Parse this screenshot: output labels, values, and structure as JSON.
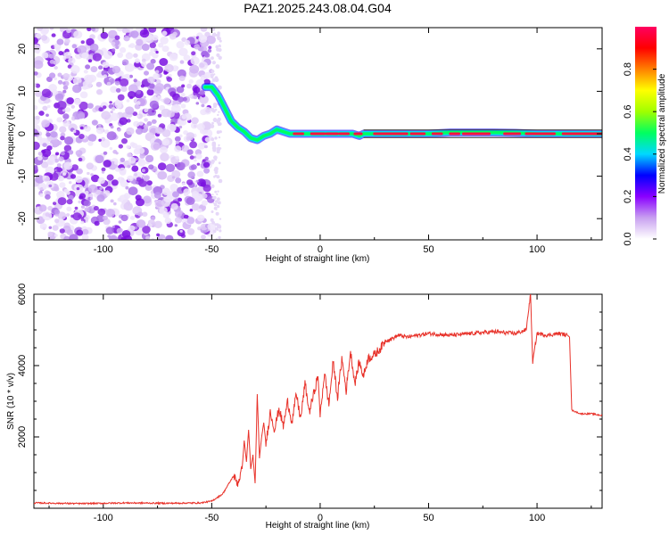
{
  "title": "PAZ1.2025.243.08.04.G04",
  "colors": {
    "snr_line": "#e8322a",
    "spectrogram_noise": "#8a2be2",
    "axis": "#000000"
  },
  "chart_data": [
    {
      "type": "heatmap",
      "title": "PAZ1.2025.243.08.04.G04",
      "xlabel": "Height of straight line (km)",
      "ylabel": "Frequency (Hz)",
      "xlim": [
        -132,
        130
      ],
      "ylim": [
        -25,
        25
      ],
      "xticks": [
        -100,
        -50,
        0,
        50,
        100
      ],
      "yticks": [
        -20,
        -10,
        0,
        10,
        20
      ],
      "colorbar": {
        "label": "Normalized spectral amplitude",
        "range": [
          0.0,
          1.0
        ],
        "ticks": [
          0.0,
          0.2,
          0.4,
          0.6,
          0.8
        ],
        "colormap": [
          "#ffffff",
          "#c8a0f0",
          "#8a00ff",
          "#0000ff",
          "#00d8ff",
          "#00ff60",
          "#a0ff00",
          "#ffff00",
          "#ff8000",
          "#ff0000",
          "#ff0060"
        ]
      },
      "noise_region_x": [
        -132,
        -50
      ],
      "signal_track": {
        "x": [
          -53,
          -50,
          -47,
          -44,
          -41,
          -38,
          -35,
          -32,
          -29,
          -26,
          -23,
          -20,
          -17,
          -14,
          -10,
          -5,
          0,
          5,
          10,
          15,
          18,
          20,
          25,
          35,
          50,
          60,
          70,
          80,
          90,
          100,
          110,
          120,
          130
        ],
        "y": [
          11,
          11,
          9,
          6,
          3,
          1.5,
          0.5,
          -1,
          -1.5,
          -0.5,
          0,
          1,
          0.5,
          0,
          0,
          0,
          0,
          0,
          0,
          0,
          -0.5,
          0,
          0,
          0,
          0,
          0.3,
          0.3,
          0.3,
          0.2,
          0,
          0,
          0,
          0
        ]
      }
    },
    {
      "type": "line",
      "xlabel": "Height of straight line (km)",
      "ylabel": "SNR (10 * v/v)",
      "xlim": [
        -132,
        130
      ],
      "ylim": [
        0,
        6000
      ],
      "xticks": [
        -100,
        -50,
        0,
        50,
        100
      ],
      "yticks": [
        2000,
        4000,
        6000
      ],
      "series": [
        {
          "x": [
            -132,
            -110,
            -90,
            -70,
            -55,
            -50,
            -45,
            -42,
            -40,
            -38,
            -36,
            -35,
            -34,
            -33,
            -32,
            -31,
            -30,
            -29,
            -28,
            -27,
            -26,
            -25,
            -23,
            -21,
            -19,
            -17,
            -15,
            -13,
            -11,
            -9,
            -7,
            -5,
            -3,
            -1,
            0,
            2,
            4,
            6,
            8,
            10,
            12,
            14,
            16,
            18,
            20,
            22,
            25,
            28,
            30,
            33,
            36,
            40,
            50,
            60,
            70,
            80,
            90,
            95,
            97,
            98,
            100,
            105,
            110,
            114,
            115,
            116,
            118,
            120,
            125,
            130
          ],
          "y": [
            150,
            130,
            150,
            140,
            150,
            200,
            400,
            700,
            900,
            700,
            1100,
            1900,
            1300,
            2200,
            1100,
            1500,
            700,
            3200,
            1400,
            2000,
            2400,
            1800,
            2700,
            2200,
            2800,
            2300,
            3000,
            2400,
            3200,
            2500,
            3500,
            2700,
            3200,
            3700,
            2600,
            3800,
            2900,
            4100,
            3100,
            4200,
            3300,
            4400,
            3500,
            4100,
            3700,
            4200,
            4300,
            4500,
            4700,
            4750,
            4850,
            4800,
            4900,
            4850,
            4900,
            4950,
            4900,
            5000,
            6000,
            4100,
            4900,
            4850,
            4900,
            4850,
            4800,
            2750,
            2700,
            2650,
            2650,
            2600
          ]
        }
      ]
    }
  ]
}
